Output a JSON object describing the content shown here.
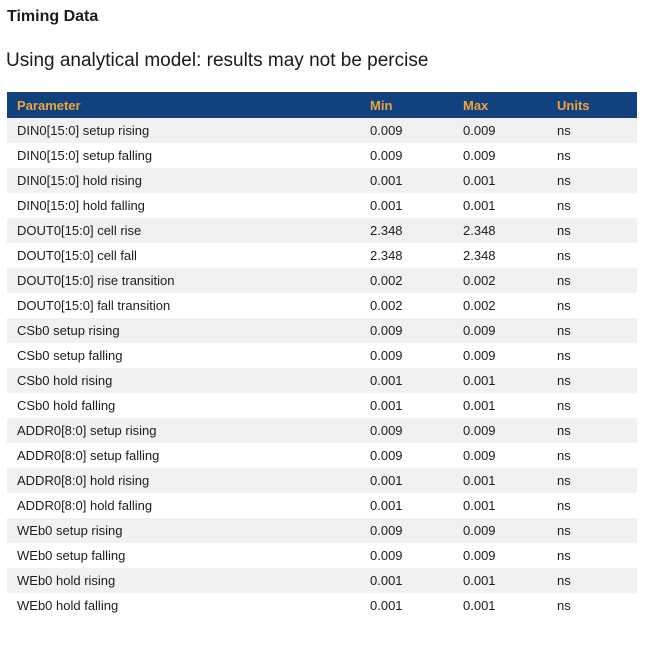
{
  "page": {
    "title": "Timing Data",
    "subtitle": "Using analytical model: results may not be percise"
  },
  "table": {
    "columns": [
      "Parameter",
      "Min",
      "Max",
      "Units"
    ],
    "rows": [
      {
        "parameter": "DIN0[15:0] setup rising",
        "min": "0.009",
        "max": "0.009",
        "units": "ns"
      },
      {
        "parameter": "DIN0[15:0] setup falling",
        "min": "0.009",
        "max": "0.009",
        "units": "ns"
      },
      {
        "parameter": "DIN0[15:0] hold rising",
        "min": "0.001",
        "max": "0.001",
        "units": "ns"
      },
      {
        "parameter": "DIN0[15:0] hold falling",
        "min": "0.001",
        "max": "0.001",
        "units": "ns"
      },
      {
        "parameter": "DOUT0[15:0] cell rise",
        "min": "2.348",
        "max": "2.348",
        "units": "ns"
      },
      {
        "parameter": "DOUT0[15:0] cell fall",
        "min": "2.348",
        "max": "2.348",
        "units": "ns"
      },
      {
        "parameter": "DOUT0[15:0] rise transition",
        "min": "0.002",
        "max": "0.002",
        "units": "ns"
      },
      {
        "parameter": "DOUT0[15:0] fall transition",
        "min": "0.002",
        "max": "0.002",
        "units": "ns"
      },
      {
        "parameter": "CSb0 setup rising",
        "min": "0.009",
        "max": "0.009",
        "units": "ns"
      },
      {
        "parameter": "CSb0 setup falling",
        "min": "0.009",
        "max": "0.009",
        "units": "ns"
      },
      {
        "parameter": "CSb0 hold rising",
        "min": "0.001",
        "max": "0.001",
        "units": "ns"
      },
      {
        "parameter": "CSb0 hold falling",
        "min": "0.001",
        "max": "0.001",
        "units": "ns"
      },
      {
        "parameter": "ADDR0[8:0] setup rising",
        "min": "0.009",
        "max": "0.009",
        "units": "ns"
      },
      {
        "parameter": "ADDR0[8:0] setup falling",
        "min": "0.009",
        "max": "0.009",
        "units": "ns"
      },
      {
        "parameter": "ADDR0[8:0] hold rising",
        "min": "0.001",
        "max": "0.001",
        "units": "ns"
      },
      {
        "parameter": "ADDR0[8:0] hold falling",
        "min": "0.001",
        "max": "0.001",
        "units": "ns"
      },
      {
        "parameter": "WEb0 setup rising",
        "min": "0.009",
        "max": "0.009",
        "units": "ns"
      },
      {
        "parameter": "WEb0 setup falling",
        "min": "0.009",
        "max": "0.009",
        "units": "ns"
      },
      {
        "parameter": "WEb0 hold rising",
        "min": "0.001",
        "max": "0.001",
        "units": "ns"
      },
      {
        "parameter": "WEb0 hold falling",
        "min": "0.001",
        "max": "0.001",
        "units": "ns"
      }
    ]
  },
  "colors": {
    "header_bg": "#12427E",
    "header_text": "#F0A33C",
    "row_alt_bg": "#F0F1F1",
    "body_text": "#1C1C1C"
  }
}
